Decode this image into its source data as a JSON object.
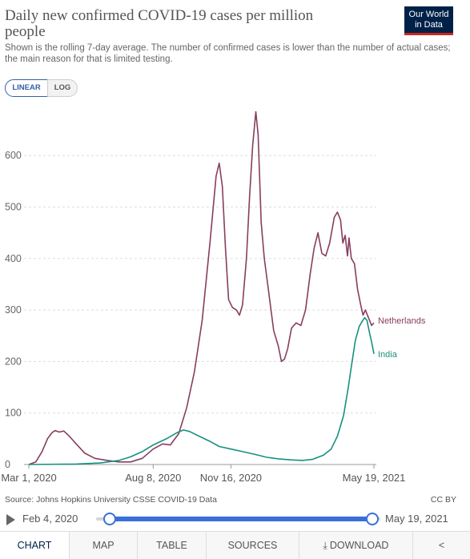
{
  "header": {
    "title": "Daily new confirmed COVID-19 cases per million people",
    "subtitle": "Shown is the rolling 7-day average. The number of confirmed cases is lower than the number of actual cases; the main reason for that is limited testing.",
    "logo_line1": "Our World",
    "logo_line2": "in Data"
  },
  "scale_toggle": {
    "linear": "LINEAR",
    "log": "LOG",
    "selected": "LINEAR"
  },
  "chart_data": {
    "type": "line",
    "title": "Daily new confirmed COVID-19 cases per million people",
    "x_start": "2020-03-01",
    "x_end": "2021-05-19",
    "x_ticks": [
      "Mar 1, 2020",
      "Aug 8, 2020",
      "Nov 16, 2020",
      "May 19, 2021"
    ],
    "y_ticks": [
      0,
      100,
      200,
      300,
      400,
      500,
      600
    ],
    "ylim": [
      0,
      700
    ],
    "grid": "horizontal-dashed",
    "legend": "end-of-line labels",
    "series": [
      {
        "name": "Netherlands",
        "color": "#883d60",
        "points": [
          [
            "2020-03-01",
            0
          ],
          [
            "2020-03-10",
            5
          ],
          [
            "2020-03-18",
            25
          ],
          [
            "2020-03-25",
            50
          ],
          [
            "2020-03-31",
            62
          ],
          [
            "2020-04-04",
            66
          ],
          [
            "2020-04-09",
            63
          ],
          [
            "2020-04-15",
            65
          ],
          [
            "2020-04-22",
            55
          ],
          [
            "2020-05-01",
            40
          ],
          [
            "2020-05-12",
            22
          ],
          [
            "2020-05-25",
            12
          ],
          [
            "2020-06-10",
            8
          ],
          [
            "2020-06-25",
            5
          ],
          [
            "2020-07-10",
            5
          ],
          [
            "2020-07-25",
            12
          ],
          [
            "2020-08-08",
            30
          ],
          [
            "2020-08-20",
            40
          ],
          [
            "2020-08-30",
            38
          ],
          [
            "2020-09-10",
            60
          ],
          [
            "2020-09-20",
            110
          ],
          [
            "2020-09-30",
            180
          ],
          [
            "2020-10-10",
            280
          ],
          [
            "2020-10-20",
            430
          ],
          [
            "2020-10-28",
            560
          ],
          [
            "2020-11-01",
            585
          ],
          [
            "2020-11-05",
            540
          ],
          [
            "2020-11-09",
            420
          ],
          [
            "2020-11-13",
            320
          ],
          [
            "2020-11-18",
            305
          ],
          [
            "2020-11-23",
            300
          ],
          [
            "2020-11-27",
            290
          ],
          [
            "2020-12-01",
            310
          ],
          [
            "2020-12-06",
            400
          ],
          [
            "2020-12-10",
            520
          ],
          [
            "2020-12-14",
            620
          ],
          [
            "2020-12-18",
            685
          ],
          [
            "2020-12-21",
            640
          ],
          [
            "2020-12-25",
            470
          ],
          [
            "2020-12-29",
            400
          ],
          [
            "2021-01-04",
            330
          ],
          [
            "2021-01-10",
            260
          ],
          [
            "2021-01-16",
            230
          ],
          [
            "2021-01-20",
            200
          ],
          [
            "2021-01-24",
            205
          ],
          [
            "2021-01-28",
            225
          ],
          [
            "2021-02-02",
            265
          ],
          [
            "2021-02-08",
            275
          ],
          [
            "2021-02-14",
            270
          ],
          [
            "2021-02-20",
            300
          ],
          [
            "2021-02-26",
            370
          ],
          [
            "2021-03-03",
            420
          ],
          [
            "2021-03-08",
            450
          ],
          [
            "2021-03-13",
            410
          ],
          [
            "2021-03-18",
            405
          ],
          [
            "2021-03-23",
            430
          ],
          [
            "2021-03-29",
            480
          ],
          [
            "2021-04-02",
            490
          ],
          [
            "2021-04-06",
            475
          ],
          [
            "2021-04-09",
            430
          ],
          [
            "2021-04-12",
            445
          ],
          [
            "2021-04-15",
            405
          ],
          [
            "2021-04-17",
            440
          ],
          [
            "2021-04-20",
            400
          ],
          [
            "2021-04-24",
            390
          ],
          [
            "2021-04-28",
            340
          ],
          [
            "2021-05-02",
            310
          ],
          [
            "2021-05-05",
            290
          ],
          [
            "2021-05-08",
            300
          ],
          [
            "2021-05-12",
            285
          ],
          [
            "2021-05-16",
            270
          ],
          [
            "2021-05-19",
            275
          ]
        ]
      },
      {
        "name": "India",
        "color": "#18907f",
        "points": [
          [
            "2020-03-01",
            0
          ],
          [
            "2020-05-01",
            1
          ],
          [
            "2020-06-01",
            3
          ],
          [
            "2020-06-25",
            8
          ],
          [
            "2020-07-10",
            15
          ],
          [
            "2020-07-25",
            25
          ],
          [
            "2020-08-08",
            38
          ],
          [
            "2020-08-25",
            50
          ],
          [
            "2020-09-08",
            62
          ],
          [
            "2020-09-16",
            67
          ],
          [
            "2020-09-24",
            64
          ],
          [
            "2020-10-06",
            55
          ],
          [
            "2020-10-20",
            45
          ],
          [
            "2020-11-01",
            35
          ],
          [
            "2020-11-16",
            30
          ],
          [
            "2020-12-01",
            25
          ],
          [
            "2020-12-16",
            20
          ],
          [
            "2021-01-01",
            14
          ],
          [
            "2021-01-16",
            11
          ],
          [
            "2021-02-01",
            9
          ],
          [
            "2021-02-16",
            8
          ],
          [
            "2021-03-01",
            10
          ],
          [
            "2021-03-15",
            18
          ],
          [
            "2021-03-25",
            30
          ],
          [
            "2021-04-02",
            55
          ],
          [
            "2021-04-10",
            95
          ],
          [
            "2021-04-16",
            150
          ],
          [
            "2021-04-20",
            190
          ],
          [
            "2021-04-25",
            240
          ],
          [
            "2021-04-30",
            268
          ],
          [
            "2021-05-04",
            278
          ],
          [
            "2021-05-07",
            285
          ],
          [
            "2021-05-10",
            280
          ],
          [
            "2021-05-13",
            258
          ],
          [
            "2021-05-16",
            238
          ],
          [
            "2021-05-19",
            215
          ]
        ]
      }
    ]
  },
  "footer": {
    "source": "Source: Johns Hopkins University CSSE COVID-19 Data",
    "license": "CC BY",
    "timeline_start": "Feb 4, 2020",
    "timeline_end": "May 19, 2021"
  },
  "tabs": [
    {
      "label": "CHART",
      "active": true
    },
    {
      "label": "MAP"
    },
    {
      "label": "TABLE"
    },
    {
      "label": "SOURCES"
    },
    {
      "label": "DOWNLOAD",
      "icon": "download-icon"
    },
    {
      "label": "",
      "icon": "share-icon"
    }
  ]
}
